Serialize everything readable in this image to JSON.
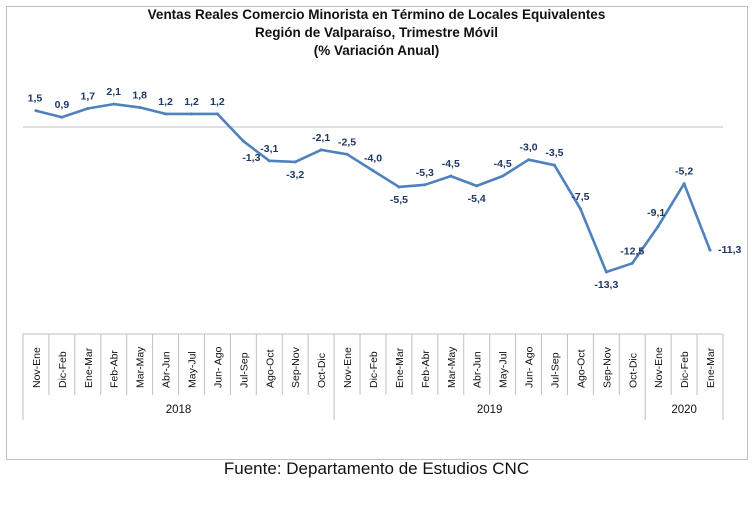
{
  "chart_data": {
    "type": "line",
    "title": "Ventas Reales Comercio Minorista  en Término de Locales Equivalentes",
    "subtitle": "Región de Valparaíso, Trimestre Móvil",
    "subtitle2": "(% Variación Anual)",
    "categories": [
      "Nov-Ene",
      "Dic-Feb",
      "Ene-Mar",
      "Feb-Abr",
      "Mar-May",
      "Abr-Jun",
      "May-Jul",
      "Jun- Ago",
      "Jul-Sep",
      "Ago-Oct",
      "Sep-Nov",
      "Oct-Dic",
      "Nov-Ene",
      "Dic-Feb",
      "Ene-Mar",
      "Feb-Abr",
      "Mar-May",
      "Abr-Jun",
      "May-Jul",
      "Jun- Ago",
      "Jul-Sep",
      "Ago-Oct",
      "Sep-Nov",
      "Oct-Dic",
      "Nov-Ene",
      "Dic-Feb",
      "Ene-Mar"
    ],
    "values": [
      1.5,
      0.9,
      1.7,
      2.1,
      1.8,
      1.2,
      1.2,
      1.2,
      -1.3,
      -3.1,
      -3.2,
      -2.1,
      -2.5,
      -4.0,
      -5.5,
      -5.3,
      -4.5,
      -5.4,
      -4.5,
      -3.0,
      -3.5,
      -7.5,
      -13.3,
      -12.5,
      -9.1,
      -5.2,
      -11.3
    ],
    "value_labels": [
      "1,5",
      "0,9",
      "1,7",
      "2,1",
      "1,8",
      "1,2",
      "1,2",
      "1,2",
      "-1,3",
      "-3,1",
      "-3,2",
      "-2,1",
      "-2,5",
      "-4,0",
      "-5,5",
      "-5,3",
      "-4,5",
      "-5,4",
      "-4,5",
      "-3,0",
      "-3,5",
      "-7,5",
      "-13,3",
      "-12,5",
      "-9,1",
      "-5,2",
      "-11,3"
    ],
    "year_groups": [
      {
        "label": "2018",
        "count": 12
      },
      {
        "label": "2019",
        "count": 12
      },
      {
        "label": "2020",
        "count": 3
      }
    ],
    "ylim": [
      -15,
      3
    ],
    "line_color": "#4f81bd",
    "label_color": "#1f3864",
    "grid": false
  },
  "source": "Fuente: Departamento de Estudios CNC"
}
